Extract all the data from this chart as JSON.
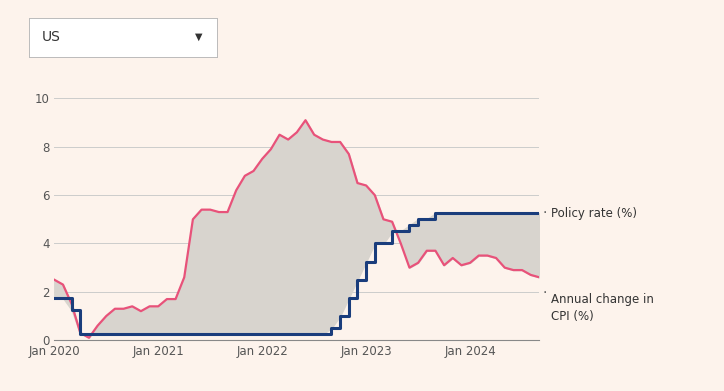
{
  "background_color": "#fdf3ec",
  "plot_bg_color": "#fdf3ec",
  "grid_color": "#cccccc",
  "policy_color": "#1a3d7c",
  "cpi_color": "#e8527a",
  "fill_color": "#d8d4ce",
  "fill_alpha": 1.0,
  "policy_label": "· Policy rate (%)",
  "cpi_label": "· Annual change in\n  CPI (%)",
  "policy_linewidth": 2.2,
  "cpi_linewidth": 1.6,
  "xtick_labels": [
    "Jan 2020",
    "Jan 2021",
    "Jan 2022",
    "Jan 2023",
    "Jan 2024"
  ],
  "yticks": [
    0,
    2,
    4,
    6,
    8,
    10
  ],
  "ylim": [
    0,
    11
  ],
  "dates_months": [
    0,
    1,
    2,
    3,
    4,
    5,
    6,
    7,
    8,
    9,
    10,
    11,
    12,
    13,
    14,
    15,
    16,
    17,
    18,
    19,
    20,
    21,
    22,
    23,
    24,
    25,
    26,
    27,
    28,
    29,
    30,
    31,
    32,
    33,
    34,
    35,
    36,
    37,
    38,
    39,
    40,
    41,
    42,
    43,
    44,
    45,
    46,
    47,
    48,
    49,
    50,
    51,
    52,
    53,
    54,
    55,
    56
  ],
  "policy_rate": [
    1.75,
    1.75,
    1.25,
    0.25,
    0.25,
    0.25,
    0.25,
    0.25,
    0.25,
    0.25,
    0.25,
    0.25,
    0.25,
    0.25,
    0.25,
    0.25,
    0.25,
    0.25,
    0.25,
    0.25,
    0.25,
    0.25,
    0.25,
    0.25,
    0.25,
    0.25,
    0.25,
    0.25,
    0.25,
    0.25,
    0.25,
    0.25,
    0.5,
    1.0,
    1.75,
    2.5,
    3.25,
    4.0,
    4.0,
    4.5,
    4.5,
    4.75,
    5.0,
    5.0,
    5.25,
    5.25,
    5.25,
    5.25,
    5.25,
    5.25,
    5.25,
    5.25,
    5.25,
    5.25,
    5.25,
    5.25,
    5.25
  ],
  "cpi_rate": [
    2.5,
    2.3,
    1.5,
    0.3,
    0.1,
    0.6,
    1.0,
    1.3,
    1.3,
    1.4,
    1.2,
    1.4,
    1.4,
    1.7,
    1.7,
    2.6,
    5.0,
    5.4,
    5.4,
    5.3,
    5.3,
    6.2,
    6.8,
    7.0,
    7.5,
    7.9,
    8.5,
    8.3,
    8.6,
    9.1,
    8.5,
    8.3,
    8.2,
    8.2,
    7.7,
    6.5,
    6.4,
    6.0,
    5.0,
    4.9,
    4.0,
    3.0,
    3.2,
    3.7,
    3.7,
    3.1,
    3.4,
    3.1,
    3.2,
    3.5,
    3.5,
    3.4,
    3.0,
    2.9,
    2.9,
    2.7,
    2.6
  ]
}
